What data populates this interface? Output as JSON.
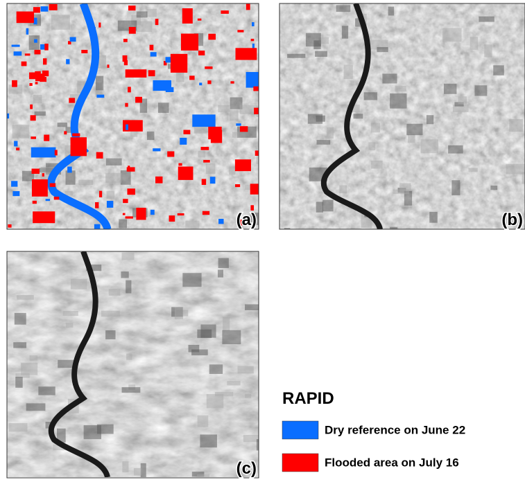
{
  "panels": [
    {
      "label": "(a)"
    },
    {
      "label": "(b)"
    },
    {
      "label": "(c)"
    }
  ],
  "legend": {
    "title": "RAPID",
    "items": [
      {
        "label": "Dry reference on June 22",
        "color": "#0a6eff"
      },
      {
        "label": "Flooded area on July 16",
        "color": "#ff0000"
      }
    ]
  }
}
